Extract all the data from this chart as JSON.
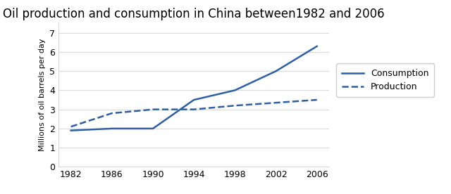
{
  "title": "Oil production and consumption in China between1982 and 2006",
  "ylabel": "Millions of oil barrels per day",
  "years": [
    1982,
    1986,
    1990,
    1994,
    1998,
    2002,
    2006
  ],
  "consumption": [
    1.9,
    2.0,
    2.0,
    3.5,
    4.0,
    5.0,
    6.3
  ],
  "production": [
    2.1,
    2.8,
    3.0,
    3.0,
    3.2,
    3.35,
    3.5
  ],
  "consumption_label": "Consumption",
  "production_label": "Production",
  "line_color": "#2E5FA3",
  "ylim": [
    0,
    7.5
  ],
  "yticks": [
    0,
    1,
    2,
    3,
    4,
    5,
    6,
    7
  ],
  "xticks": [
    1982,
    1986,
    1990,
    1994,
    1998,
    2002,
    2006
  ],
  "background_color": "#ffffff",
  "title_fontsize": 12,
  "label_fontsize": 8,
  "tick_fontsize": 9,
  "legend_fontsize": 9,
  "grid_color": "#d9d9d9",
  "spine_color": "#d9d9d9"
}
